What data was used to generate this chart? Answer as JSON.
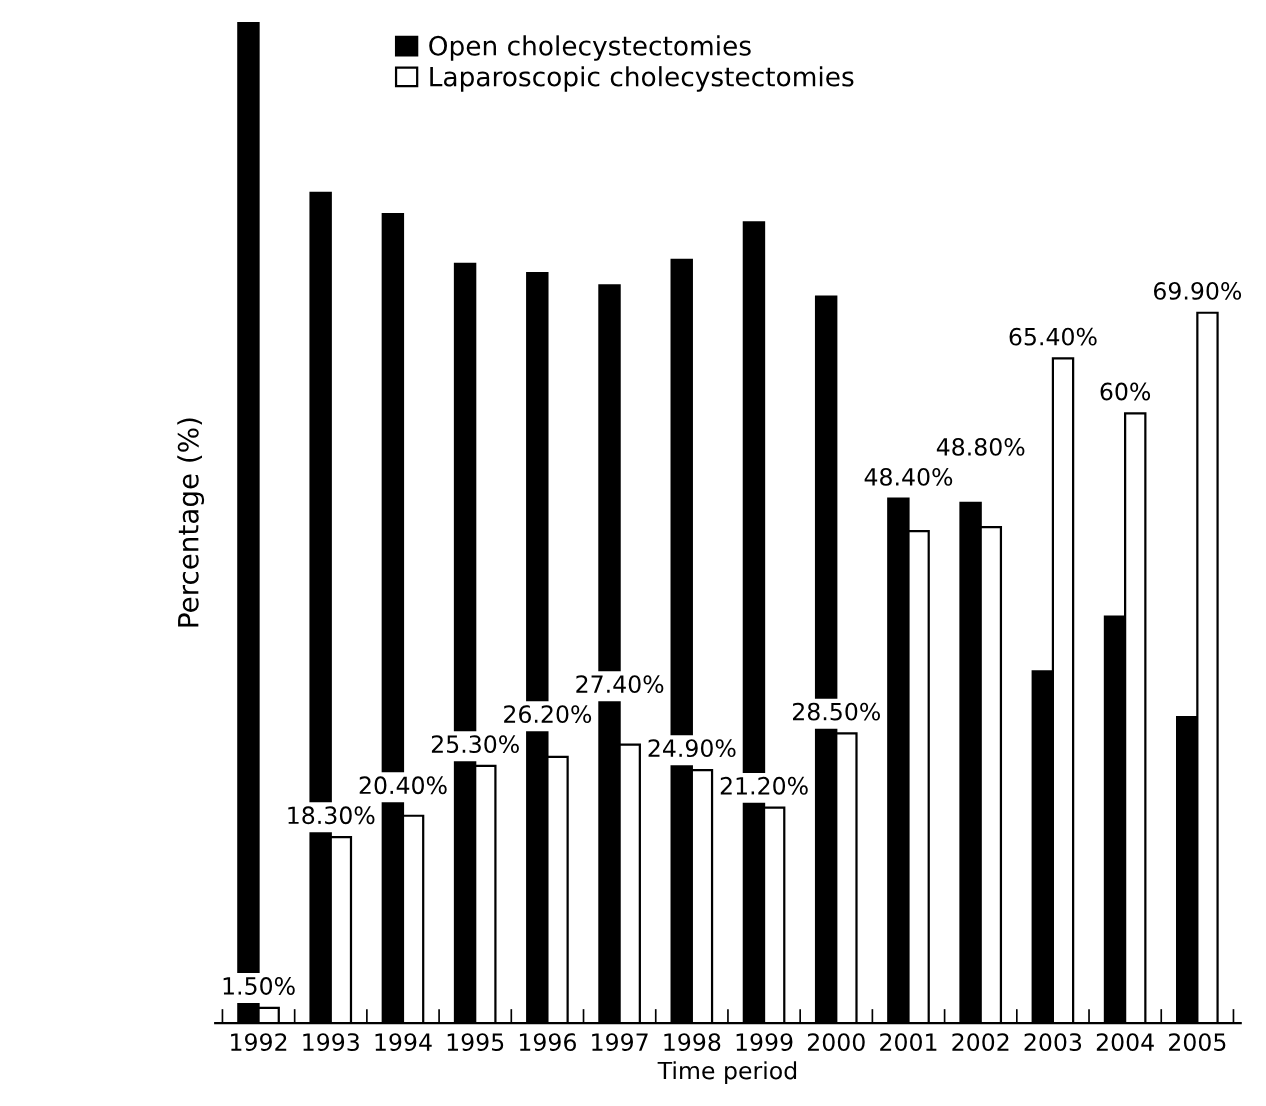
{
  "chart_data": {
    "type": "bar",
    "xlabel": "Time period",
    "ylabel": "Percentage (%)",
    "categories": [
      "1992",
      "1993",
      "1994",
      "1995",
      "1996",
      "1997",
      "1998",
      "1999",
      "2000",
      "2001",
      "2002",
      "2003",
      "2004",
      "2005"
    ],
    "series": [
      {
        "name": "Open cholecystectomies",
        "color": "#000000",
        "values": [
          98.5,
          81.7,
          79.6,
          74.7,
          73.8,
          72.6,
          75.1,
          78.8,
          71.5,
          51.6,
          51.2,
          34.6,
          40,
          30.1
        ]
      },
      {
        "name": "Laparoscopic cholecystectomies",
        "color": "#ffffff",
        "values": [
          1.5,
          18.3,
          20.4,
          25.3,
          26.2,
          27.4,
          24.9,
          21.2,
          28.5,
          48.4,
          48.8,
          65.4,
          60,
          69.9
        ],
        "value_labels": [
          "1.50%",
          "18.30%",
          "20.40%",
          "25.30%",
          "26.20%",
          "27.40%",
          "24.90%",
          "21.20%",
          "28.50%",
          "48.40%",
          "48.80%",
          "65.40%",
          "60%",
          "69.90%"
        ]
      }
    ],
    "tick_labels": "x",
    "legend": "top",
    "grid": false
  }
}
